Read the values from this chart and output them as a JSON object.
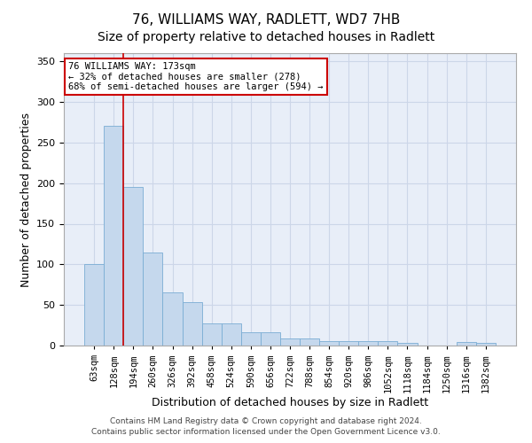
{
  "title": "76, WILLIAMS WAY, RADLETT, WD7 7HB",
  "subtitle": "Size of property relative to detached houses in Radlett",
  "xlabel": "Distribution of detached houses by size in Radlett",
  "ylabel": "Number of detached properties",
  "footer_line1": "Contains HM Land Registry data © Crown copyright and database right 2024.",
  "footer_line2": "Contains public sector information licensed under the Open Government Licence v3.0.",
  "annotation_line1": "76 WILLIAMS WAY: 173sqm",
  "annotation_line2": "← 32% of detached houses are smaller (278)",
  "annotation_line3": "68% of semi-detached houses are larger (594) →",
  "bar_color": "#c5d8ed",
  "bar_edge_color": "#7aadd4",
  "vline_color": "#cc0000",
  "grid_color": "#ccd6e8",
  "background_color": "#e8eef8",
  "categories": [
    "63sqm",
    "128sqm",
    "194sqm",
    "260sqm",
    "326sqm",
    "392sqm",
    "458sqm",
    "524sqm",
    "590sqm",
    "656sqm",
    "722sqm",
    "788sqm",
    "854sqm",
    "920sqm",
    "986sqm",
    "1052sqm",
    "1118sqm",
    "1184sqm",
    "1250sqm",
    "1316sqm",
    "1382sqm"
  ],
  "values": [
    100,
    270,
    195,
    115,
    65,
    53,
    27,
    27,
    16,
    16,
    9,
    9,
    5,
    5,
    5,
    5,
    3,
    0,
    0,
    4,
    3
  ],
  "vline_x": 1.5,
  "ylim": [
    0,
    360
  ],
  "yticks": [
    0,
    50,
    100,
    150,
    200,
    250,
    300,
    350
  ],
  "title_fontsize": 11,
  "subtitle_fontsize": 10,
  "tick_fontsize": 7.5,
  "label_fontsize": 9,
  "footer_fontsize": 6.5
}
